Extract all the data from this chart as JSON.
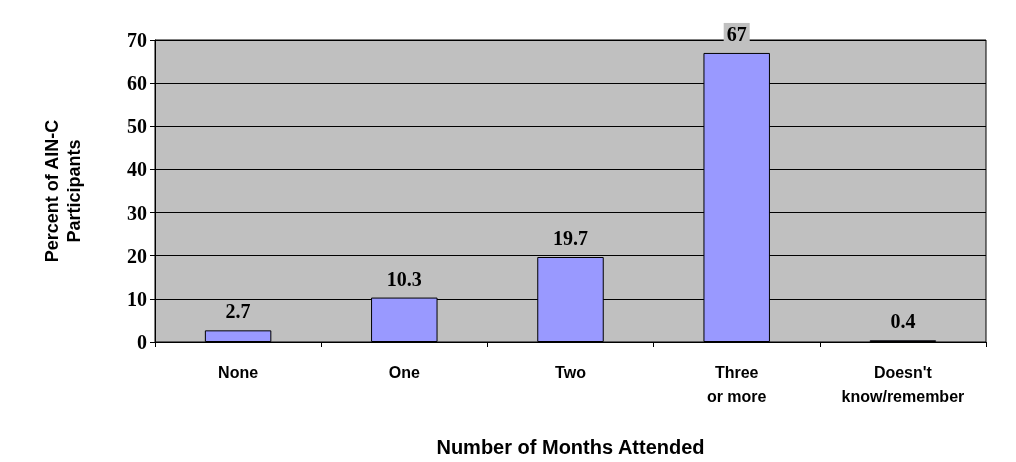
{
  "chart_data": {
    "type": "bar",
    "xlabel": "Number of Months Attended",
    "ylabel": "Percent of AIN-C\nParticipants",
    "categories": [
      "None",
      "One",
      "Two",
      "Three\nor more",
      "Doesn't\nknow/remember"
    ],
    "values": [
      2.7,
      10.3,
      19.7,
      67,
      0.4
    ],
    "color": "#9999ff",
    "ylim": [
      0,
      70
    ],
    "yticks": [
      0,
      10,
      20,
      30,
      40,
      50,
      60,
      70
    ],
    "grid": "y",
    "data_labels": true
  }
}
